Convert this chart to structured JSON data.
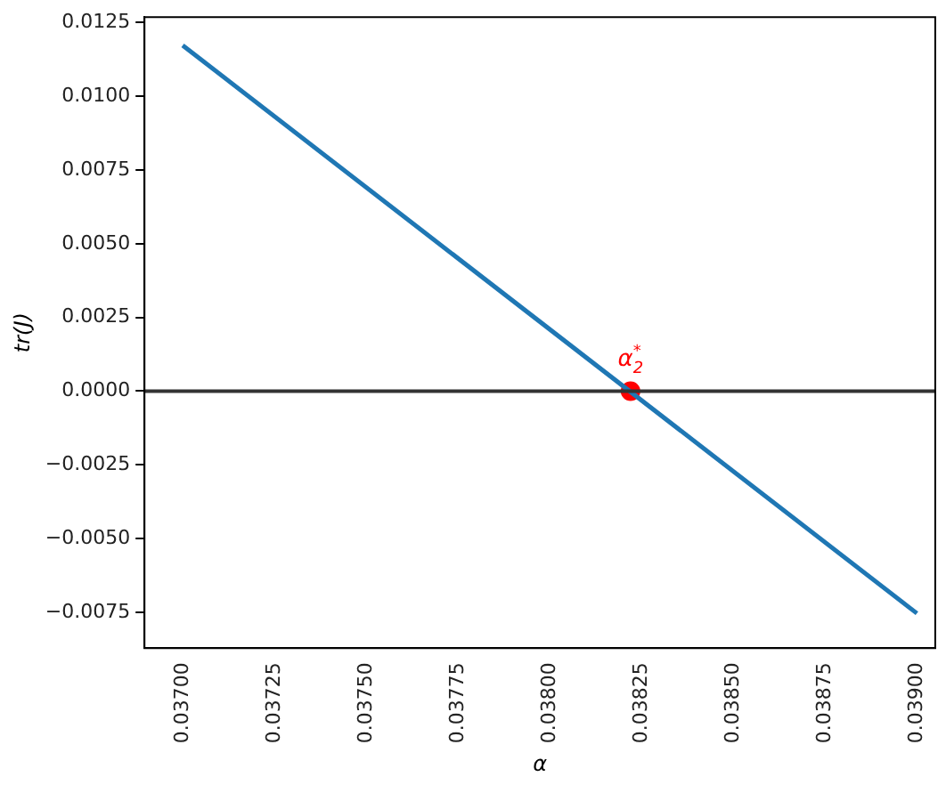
{
  "chart_data": {
    "type": "line",
    "xlabel": "α",
    "ylabel": "tr(J)",
    "x": [
      0.037,
      0.039
    ],
    "series": [
      {
        "color": "#1f77b4",
        "marker": "none",
        "values": [
          0.01173,
          -0.00754
        ]
      },
      {
        "type": "scatter",
        "marker": "circle",
        "color": "#ff0000",
        "x": [
          0.03822
        ],
        "values": [
          0
        ]
      }
    ],
    "xlim": [
      0.036896,
      0.03905
    ],
    "ylim": [
      -0.00872,
      0.01269
    ],
    "xticks": [
      {
        "value": 0.037,
        "label": "0.03700"
      },
      {
        "value": 0.03725,
        "label": "0.03725"
      },
      {
        "value": 0.0375,
        "label": "0.03750"
      },
      {
        "value": 0.03775,
        "label": "0.03775"
      },
      {
        "value": 0.038,
        "label": "0.03800"
      },
      {
        "value": 0.03825,
        "label": "0.03825"
      },
      {
        "value": 0.0385,
        "label": "0.03850"
      },
      {
        "value": 0.03875,
        "label": "0.03875"
      },
      {
        "value": 0.039,
        "label": "0.03900"
      }
    ],
    "yticks": [
      {
        "value": -0.0075,
        "label": "−0.0075"
      },
      {
        "value": -0.005,
        "label": "−0.0050"
      },
      {
        "value": -0.0025,
        "label": "−0.0025"
      },
      {
        "value": 0,
        "label": "0.0000"
      },
      {
        "value": 0.0025,
        "label": "0.0025"
      },
      {
        "value": 0.005,
        "label": "0.0050"
      },
      {
        "value": 0.0075,
        "label": "0.0075"
      },
      {
        "value": 0.01,
        "label": "0.0100"
      },
      {
        "value": 0.0125,
        "label": "0.0125"
      }
    ],
    "ref_lines": [
      {
        "axis": "y",
        "value": 0,
        "color": "#333333"
      }
    ],
    "annotations": [
      {
        "text": "α$_{2}$$^{*}$",
        "x": 0.03822,
        "y": 0
      }
    ],
    "grid": false,
    "legend": false,
    "line_style": "solid"
  }
}
